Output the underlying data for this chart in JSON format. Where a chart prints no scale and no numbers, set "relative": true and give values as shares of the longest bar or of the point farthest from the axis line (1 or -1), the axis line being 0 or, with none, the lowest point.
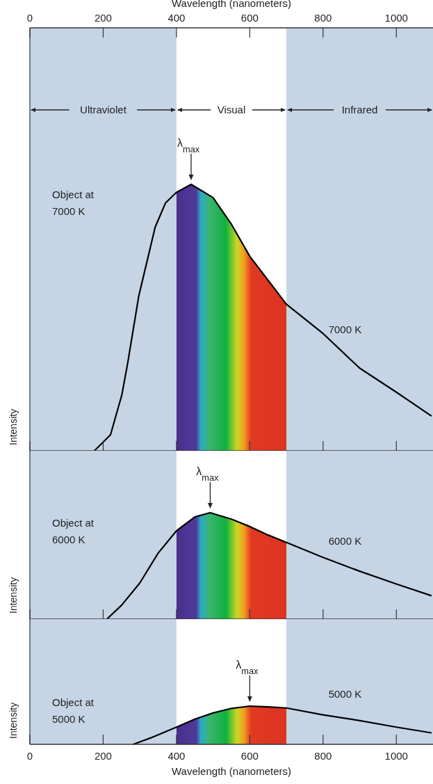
{
  "chart_data": [
    {
      "type": "line",
      "color": "#000000",
      "relative": true,
      "ylabel": "Intensity",
      "xlabel": "Wavelength (nanometers)",
      "x": [
        176,
        220,
        251,
        267,
        297,
        342,
        370,
        400,
        440,
        500,
        550,
        600,
        650,
        700,
        800,
        900,
        1000,
        1096
      ],
      "values": [
        0,
        0.06,
        0.21,
        0.33,
        0.58,
        0.84,
        0.93,
        0.97,
        1,
        0.95,
        0.85,
        0.73,
        0.64,
        0.55,
        0.44,
        0.31,
        0.22,
        0.13
      ],
      "xlim": [
        0,
        1100
      ],
      "xticks": [
        0,
        200,
        400,
        600,
        800,
        1000
      ],
      "bands": [
        {
          "axis": "x",
          "from": 0,
          "to": 400,
          "label": "Ultraviolet",
          "color": "#c5d5e6"
        },
        {
          "axis": "x",
          "from": 400,
          "to": 700,
          "label": "Visual",
          "color": "#ffffff"
        },
        {
          "axis": "x",
          "from": 700,
          "to": 1100,
          "label": "Infrared",
          "color": "#c5d5e6"
        }
      ],
      "annotations": [
        {
          "text": "λ$_{max}$",
          "x": 440,
          "y": 1
        },
        "Object at\n7000 K",
        "7000 K"
      ]
    },
    {
      "type": "line",
      "color": "#000000",
      "relative": true,
      "ylabel": "Intensity",
      "x": [
        210,
        250,
        300,
        350,
        400,
        450,
        492,
        550,
        600,
        650,
        700,
        800,
        900,
        1000,
        1096
      ],
      "values": [
        0,
        0.13,
        0.34,
        0.62,
        0.83,
        0.96,
        1,
        0.94,
        0.87,
        0.79,
        0.72,
        0.58,
        0.45,
        0.33,
        0.22
      ],
      "xlim": [
        0,
        1100
      ],
      "xticks": [
        0,
        200,
        400,
        600,
        800,
        1000
      ],
      "tick_labels": false,
      "bands": [
        {
          "axis": "x",
          "from": 0,
          "to": 400,
          "color": "#c5d5e6"
        },
        {
          "axis": "x",
          "from": 400,
          "to": 700,
          "color": "#ffffff"
        },
        {
          "axis": "x",
          "from": 700,
          "to": 1100,
          "color": "#c5d5e6"
        }
      ],
      "annotations": [
        {
          "text": "λ$_{max}$",
          "x": 492,
          "y": 1
        },
        "Object at\n6000 K",
        "6000 K"
      ]
    },
    {
      "type": "line",
      "color": "#000000",
      "relative": true,
      "ylabel": "Intensity",
      "xlabel": "Wavelength (nanometers)",
      "x": [
        282,
        330,
        400,
        450,
        500,
        550,
        600,
        650,
        700,
        800,
        900,
        1000,
        1096
      ],
      "values": [
        0,
        0.17,
        0.45,
        0.66,
        0.82,
        0.94,
        1,
        0.98,
        0.95,
        0.77,
        0.62,
        0.45,
        0.3
      ],
      "xlim": [
        0,
        1100
      ],
      "xticks": [
        0,
        200,
        400,
        600,
        800,
        1000
      ],
      "bands": [
        {
          "axis": "x",
          "from": 0,
          "to": 400,
          "color": "#c5d5e6"
        },
        {
          "axis": "x",
          "from": 400,
          "to": 700,
          "color": "#ffffff"
        },
        {
          "axis": "x",
          "from": 700,
          "to": 1100,
          "color": "#c5d5e6"
        }
      ],
      "annotations": [
        {
          "text": "λ$_{max}$",
          "x": 600,
          "y": 1
        },
        "Object at\n5000 K",
        "5000 K"
      ]
    }
  ]
}
